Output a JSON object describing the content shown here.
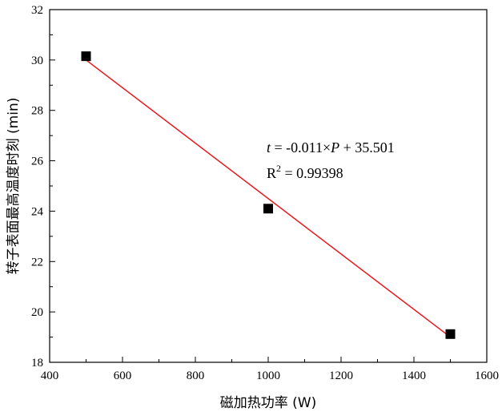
{
  "chart_data": {
    "type": "scatter",
    "xlabel": "磁加热功率 (W)",
    "ylabel": "转子表面最高温度时刻 (min)",
    "xlim": [
      400,
      1600
    ],
    "ylim": [
      18,
      32
    ],
    "xticks": [
      "400",
      "600",
      "800",
      "1000",
      "1200",
      "1400",
      "1600"
    ],
    "yticks": [
      "18",
      "20",
      "22",
      "24",
      "26",
      "28",
      "30",
      "32"
    ],
    "grid": false,
    "points": [
      {
        "x": 500,
        "y": 30.15
      },
      {
        "x": 1000,
        "y": 24.1
      },
      {
        "x": 1500,
        "y": 19.12
      }
    ],
    "fit": {
      "slope": -0.011,
      "intercept": 35.501,
      "x_range": [
        500,
        1500
      ],
      "color": "#e8191e"
    },
    "annotation": {
      "equation_parts": {
        "var_t": "t",
        "eq_mid": " = -0.011×",
        "var_p": "P",
        "eq_end": " + 35.501"
      },
      "r2_parts": {
        "r": "R",
        "sup": "2",
        "rest": " = 0.99398"
      }
    },
    "marker_color": "#000000"
  }
}
